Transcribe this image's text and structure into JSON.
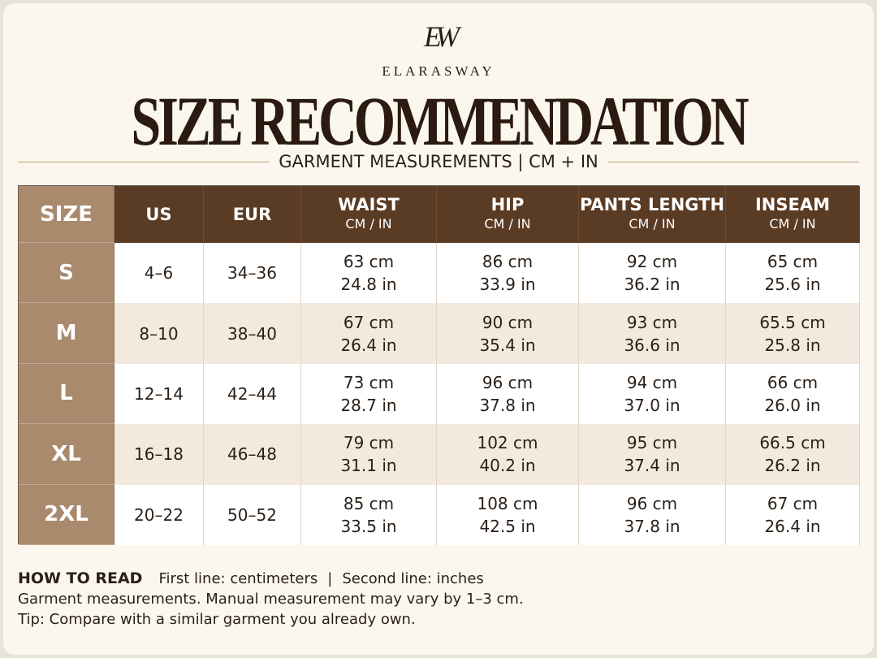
{
  "brand": {
    "monogram": "EW",
    "name": "ELARASWAY"
  },
  "title": "SIZE RECOMMENDATION",
  "subtitle": "GARMENT MEASUREMENTS | CM + IN",
  "table": {
    "header": [
      [
        "SIZE"
      ],
      [
        "US"
      ],
      [
        "EUR"
      ],
      [
        "WAIST",
        "CM / IN"
      ],
      [
        "HIP",
        "CM / IN"
      ],
      [
        "PANTS LENGTH",
        "CM / IN"
      ],
      [
        "INSEAM",
        "CM / IN"
      ]
    ],
    "rows": [
      [
        "S",
        "4–6",
        "34–36",
        [
          "63 cm",
          "24.8 in"
        ],
        [
          "86 cm",
          "33.9 in"
        ],
        [
          "92 cm",
          "36.2 in"
        ],
        [
          "65 cm",
          "25.6 in"
        ]
      ],
      [
        "M",
        "8–10",
        "38–40",
        [
          "67 cm",
          "26.4 in"
        ],
        [
          "90 cm",
          "35.4 in"
        ],
        [
          "93 cm",
          "36.6 in"
        ],
        [
          "65.5 cm",
          "25.8 in"
        ]
      ],
      [
        "L",
        "12–14",
        "42–44",
        [
          "73 cm",
          "28.7 in"
        ],
        [
          "96 cm",
          "37.8 in"
        ],
        [
          "94 cm",
          "37.0 in"
        ],
        [
          "66 cm",
          "26.0 in"
        ]
      ],
      [
        "XL",
        "16–18",
        "46–48",
        [
          "79 cm",
          "31.1 in"
        ],
        [
          "102 cm",
          "40.2 in"
        ],
        [
          "95 cm",
          "37.4 in"
        ],
        [
          "66.5 cm",
          "26.2 in"
        ]
      ],
      [
        "2XL",
        "20–22",
        "50–52",
        [
          "85 cm",
          "33.5 in"
        ],
        [
          "108 cm",
          "42.5 in"
        ],
        [
          "96 cm",
          "37.8 in"
        ],
        [
          "67 cm",
          "26.4 in"
        ]
      ]
    ]
  },
  "footer": {
    "label": "HOW TO READ",
    "legend": [
      "First line: centimeters",
      "|",
      "Second line: inches"
    ],
    "notes": [
      "Garment measurements. Manual measurement may vary by 1–3 cm.",
      "Tip: Compare with a similar garment you already own."
    ]
  }
}
